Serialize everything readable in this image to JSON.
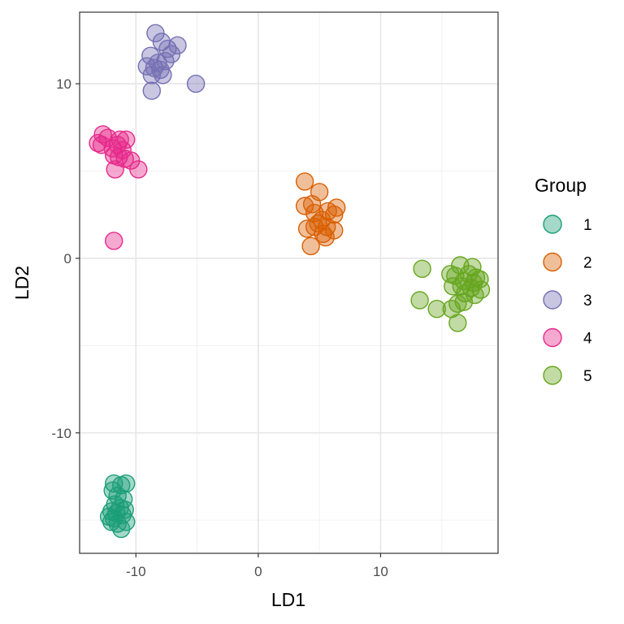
{
  "chart_data": {
    "type": "scatter",
    "xlabel": "LD1",
    "ylabel": "LD2",
    "xlim": [
      -14.6,
      19.6
    ],
    "ylim": [
      -16.9,
      14.1
    ],
    "xticks": [
      -10,
      0,
      10
    ],
    "yticks": [
      -10,
      0,
      10
    ],
    "grid": true,
    "legend": {
      "title": "Group",
      "position": "right"
    },
    "series": [
      {
        "name": "1",
        "color": "#1B9E77",
        "points": [
          [
            -11.8,
            -12.9
          ],
          [
            -11.2,
            -13.0
          ],
          [
            -10.8,
            -12.9
          ],
          [
            -11.9,
            -13.3
          ],
          [
            -11.5,
            -13.6
          ],
          [
            -11.0,
            -13.8
          ],
          [
            -11.7,
            -14.1
          ],
          [
            -11.3,
            -14.3
          ],
          [
            -10.9,
            -14.4
          ],
          [
            -12.0,
            -14.5
          ],
          [
            -11.6,
            -14.6
          ],
          [
            -11.1,
            -14.7
          ],
          [
            -12.2,
            -14.8
          ],
          [
            -11.8,
            -14.9
          ],
          [
            -10.8,
            -15.1
          ],
          [
            -11.5,
            -15.2
          ],
          [
            -12.0,
            -15.1
          ],
          [
            -11.2,
            -15.5
          ]
        ]
      },
      {
        "name": "2",
        "color": "#D95F02",
        "points": [
          [
            3.8,
            4.4
          ],
          [
            5.0,
            3.8
          ],
          [
            3.8,
            3.0
          ],
          [
            4.4,
            3.1
          ],
          [
            6.4,
            2.9
          ],
          [
            4.6,
            2.6
          ],
          [
            5.7,
            2.7
          ],
          [
            6.2,
            2.5
          ],
          [
            5.2,
            2.2
          ],
          [
            4.9,
            2.0
          ],
          [
            4.0,
            1.7
          ],
          [
            4.6,
            1.8
          ],
          [
            5.6,
            1.8
          ],
          [
            6.2,
            1.6
          ],
          [
            5.3,
            1.4
          ],
          [
            5.5,
            1.2
          ],
          [
            4.3,
            0.7
          ]
        ]
      },
      {
        "name": "3",
        "color": "#7570B3",
        "points": [
          [
            -8.4,
            12.9
          ],
          [
            -7.9,
            12.4
          ],
          [
            -6.6,
            12.2
          ],
          [
            -7.4,
            12.0
          ],
          [
            -8.8,
            11.6
          ],
          [
            -7.1,
            11.7
          ],
          [
            -8.2,
            11.2
          ],
          [
            -7.6,
            11.3
          ],
          [
            -9.1,
            11.0
          ],
          [
            -8.5,
            10.9
          ],
          [
            -8.0,
            10.8
          ],
          [
            -8.7,
            10.5
          ],
          [
            -7.8,
            10.5
          ],
          [
            -5.1,
            10.0
          ],
          [
            -8.7,
            9.6
          ]
        ]
      },
      {
        "name": "4",
        "color": "#E7298A",
        "points": [
          [
            -12.7,
            7.1
          ],
          [
            -12.3,
            6.9
          ],
          [
            -13.1,
            6.6
          ],
          [
            -12.8,
            6.5
          ],
          [
            -11.3,
            6.8
          ],
          [
            -10.8,
            6.8
          ],
          [
            -11.5,
            6.5
          ],
          [
            -11.9,
            6.3
          ],
          [
            -11.1,
            6.2
          ],
          [
            -11.8,
            5.9
          ],
          [
            -11.4,
            5.8
          ],
          [
            -10.9,
            5.7
          ],
          [
            -10.4,
            5.6
          ],
          [
            -11.7,
            5.1
          ],
          [
            -9.8,
            5.1
          ],
          [
            -11.8,
            1.0
          ]
        ]
      },
      {
        "name": "5",
        "color": "#66A61E",
        "points": [
          [
            13.4,
            -0.6
          ],
          [
            16.5,
            -0.4
          ],
          [
            17.5,
            -0.5
          ],
          [
            15.7,
            -0.9
          ],
          [
            16.1,
            -1.0
          ],
          [
            17.2,
            -0.9
          ],
          [
            17.8,
            -1.1
          ],
          [
            18.1,
            -1.2
          ],
          [
            16.8,
            -1.3
          ],
          [
            17.6,
            -1.4
          ],
          [
            15.9,
            -1.6
          ],
          [
            16.6,
            -1.6
          ],
          [
            17.4,
            -1.7
          ],
          [
            18.2,
            -1.8
          ],
          [
            16.9,
            -2.0
          ],
          [
            17.7,
            -2.1
          ],
          [
            13.2,
            -2.4
          ],
          [
            16.3,
            -2.6
          ],
          [
            16.8,
            -2.5
          ],
          [
            14.6,
            -2.9
          ],
          [
            15.8,
            -2.9
          ],
          [
            16.3,
            -3.7
          ]
        ]
      }
    ]
  }
}
